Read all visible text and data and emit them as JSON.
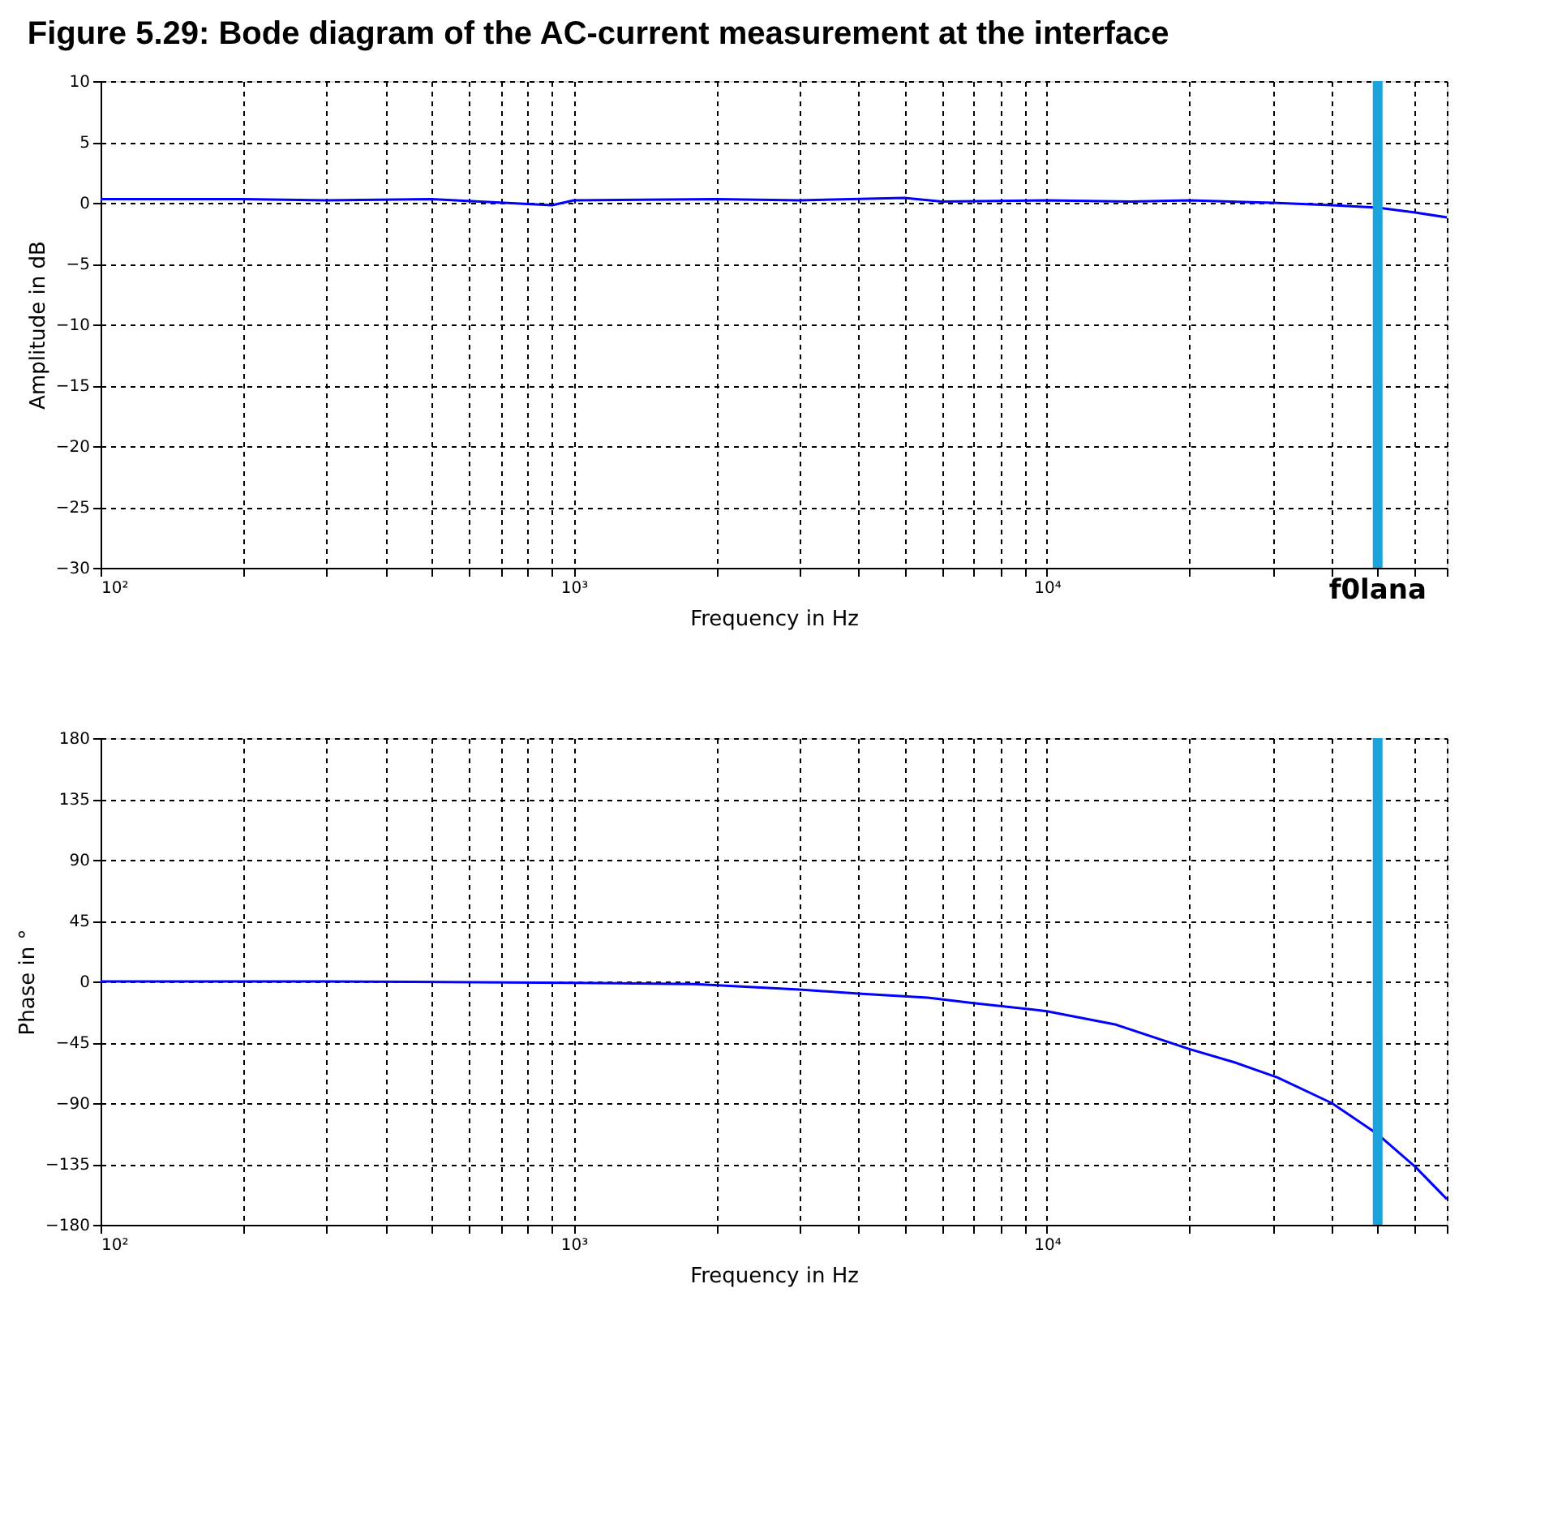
{
  "chart_data": [
    {
      "type": "line",
      "title": "Figure 5.29:  Bode diagram of the AC-current measurement at the interface",
      "xlabel": "Frequency in Hz",
      "ylabel": "Amplitude in dB",
      "log": "x",
      "grid": true,
      "xlim": [
        100,
        70000
      ],
      "ylim": [
        -30,
        10
      ],
      "yticks": [
        -30,
        -25,
        -20,
        -15,
        -10,
        -5,
        0,
        5,
        10
      ],
      "xticks": [
        {
          "value": 100,
          "label": "10²"
        },
        {
          "value": 200,
          "label": null
        },
        {
          "value": 300,
          "label": null
        },
        {
          "value": 400,
          "label": null
        },
        {
          "value": 500,
          "label": null
        },
        {
          "value": 600,
          "label": null
        },
        {
          "value": 700,
          "label": null
        },
        {
          "value": 800,
          "label": null
        },
        {
          "value": 900,
          "label": null
        },
        {
          "value": 1000,
          "label": "10³"
        },
        {
          "value": 2000,
          "label": null
        },
        {
          "value": 3000,
          "label": null
        },
        {
          "value": 4000,
          "label": null
        },
        {
          "value": 5000,
          "label": null
        },
        {
          "value": 6000,
          "label": null
        },
        {
          "value": 7000,
          "label": null
        },
        {
          "value": 8000,
          "label": null
        },
        {
          "value": 9000,
          "label": null
        },
        {
          "value": 10000,
          "label": "10⁴"
        },
        {
          "value": 20000,
          "label": null
        },
        {
          "value": 30000,
          "label": null
        },
        {
          "value": 40000,
          "label": null
        },
        {
          "value": 50000,
          "label": null
        },
        {
          "value": 60000,
          "label": null
        },
        {
          "value": 70000,
          "label": null
        }
      ],
      "x": [
        100,
        200,
        300,
        500,
        900,
        1000,
        2000,
        3000,
        5000,
        6000,
        10000,
        15000,
        20000,
        30000,
        40000,
        50000,
        60000,
        70000
      ],
      "series": [
        {
          "color": "#0000ff",
          "values": [
            0.3,
            0.3,
            0.2,
            0.3,
            -0.2,
            0.2,
            0.3,
            0.2,
            0.4,
            0.1,
            0.2,
            0.1,
            0.2,
            0,
            -0.2,
            -0.4,
            -0.8,
            -1.2
          ]
        }
      ],
      "ref_lines": [
        {
          "axis": "x",
          "value": 50000,
          "label": "f0lana",
          "color": "#1aa3dd"
        }
      ]
    },
    {
      "type": "line",
      "xlabel": "Frequency in Hz",
      "ylabel": "Phase in °",
      "log": "x",
      "grid": true,
      "xlim": [
        100,
        70000
      ],
      "ylim": [
        -180,
        180
      ],
      "yticks": [
        -180,
        -135,
        -90,
        -45,
        0,
        45,
        90,
        135,
        180
      ],
      "xticks": [
        {
          "value": 100,
          "label": "10²"
        },
        {
          "value": 200,
          "label": null
        },
        {
          "value": 300,
          "label": null
        },
        {
          "value": 400,
          "label": null
        },
        {
          "value": 500,
          "label": null
        },
        {
          "value": 600,
          "label": null
        },
        {
          "value": 700,
          "label": null
        },
        {
          "value": 800,
          "label": null
        },
        {
          "value": 900,
          "label": null
        },
        {
          "value": 1000,
          "label": "10³"
        },
        {
          "value": 2000,
          "label": null
        },
        {
          "value": 3000,
          "label": null
        },
        {
          "value": 4000,
          "label": null
        },
        {
          "value": 5000,
          "label": null
        },
        {
          "value": 6000,
          "label": null
        },
        {
          "value": 7000,
          "label": null
        },
        {
          "value": 8000,
          "label": null
        },
        {
          "value": 9000,
          "label": null
        },
        {
          "value": 10000,
          "label": "10⁴"
        },
        {
          "value": 20000,
          "label": null
        },
        {
          "value": 30000,
          "label": null
        },
        {
          "value": 40000,
          "label": null
        },
        {
          "value": 50000,
          "label": null
        },
        {
          "value": 60000,
          "label": null
        },
        {
          "value": 70000,
          "label": null
        }
      ],
      "x": [
        100,
        300,
        1000,
        1800,
        3000,
        4000,
        5600,
        7000,
        10000,
        14000,
        20000,
        25000,
        30700,
        40000,
        50000,
        60000,
        70000
      ],
      "series": [
        {
          "color": "#0000ff",
          "values": [
            0,
            0,
            -1,
            -2,
            -6,
            -9,
            -12,
            -16,
            -22,
            -32,
            -50,
            -60,
            -71,
            -90,
            -113,
            -137,
            -161
          ]
        }
      ],
      "ref_lines": [
        {
          "axis": "x",
          "value": 50000,
          "color": "#1aa3dd"
        }
      ]
    }
  ]
}
